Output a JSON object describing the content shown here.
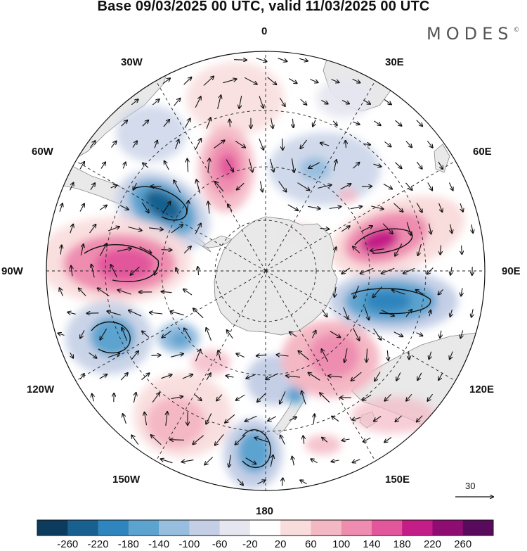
{
  "title": "Base 09/03/2025 00 UTC, valid 11/03/2025 00 UTC",
  "brand": "MODES",
  "brand_mark": "©",
  "map": {
    "projection": "south-polar-stereographic",
    "longitude_labels": {
      "lon_0": "0",
      "lon_30e": "30E",
      "lon_60e": "60E",
      "lon_90e": "90E",
      "lon_120e": "120E",
      "lon_150e": "150E",
      "lon_180": "180",
      "lon_150w": "150W",
      "lon_120w": "120W",
      "lon_90w": "90W",
      "lon_60w": "60W",
      "lon_30w": "30W"
    },
    "land_color": "#e9e9e9",
    "coast_color": "#8a8a8a",
    "grid_style": "dashed",
    "vector_arrows": true,
    "reference_vector": "30",
    "anomaly_centers": [
      {
        "name": "pos-atlantic-north",
        "value": 140
      },
      {
        "name": "neg-south-america",
        "value": -220
      },
      {
        "name": "pos-pacific-east",
        "value": 180
      },
      {
        "name": "neg-pacific-southeast",
        "value": -180
      },
      {
        "name": "neg-pacific-south",
        "value": -140
      },
      {
        "name": "neg-new-zealand",
        "value": -160
      },
      {
        "name": "neg-tasman-south",
        "value": -160
      },
      {
        "name": "pos-australia-south",
        "value": 140
      },
      {
        "name": "neg-indian-east",
        "value": -200
      },
      {
        "name": "pos-indian",
        "value": 200
      },
      {
        "name": "neg-atlantic-east",
        "value": -100
      },
      {
        "name": "pos-pacific-south",
        "value": 100
      }
    ]
  },
  "colorbar": {
    "ticks": [
      "-260",
      "-220",
      "-180",
      "-140",
      "-100",
      "-60",
      "-20",
      "20",
      "60",
      "100",
      "140",
      "180",
      "220",
      "260"
    ],
    "colors": [
      "#0c3b5e",
      "#17608f",
      "#2f85bd",
      "#5da3cf",
      "#97bedf",
      "#c4cfe6",
      "#e6e6f1",
      "#ffffff",
      "#f9dcdc",
      "#f4b8c4",
      "#ee8db0",
      "#e2579c",
      "#c51d88",
      "#8f0d72",
      "#5a0a5c"
    ]
  }
}
